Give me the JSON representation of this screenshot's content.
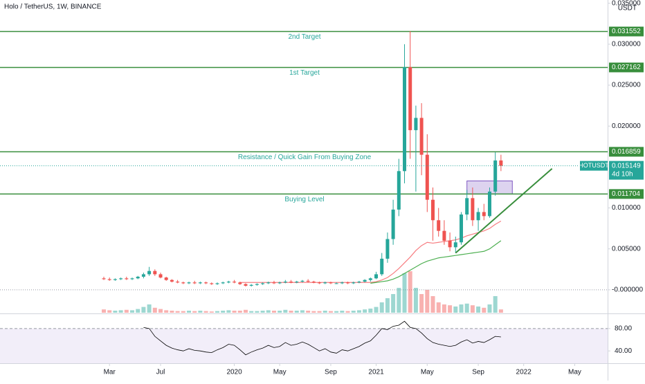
{
  "chart_data": [
    {
      "type": "candlestick",
      "title": "Holo / TetherUS, 1W, BINANCE",
      "currency": "USDT",
      "up_color": "#26a69a",
      "down_color": "#ef5350",
      "open": [
        0.0014,
        0.0013,
        0.0012,
        0.0013,
        0.0014,
        0.0013,
        0.0014,
        0.0016,
        0.0019,
        0.0023,
        0.0019,
        0.0015,
        0.0012,
        0.001,
        0.0009,
        0.0008,
        0.0009,
        0.0008,
        0.0009,
        0.0008,
        0.0007,
        0.0008,
        0.0009,
        0.001,
        0.0009,
        0.0007,
        0.0005,
        0.0006,
        0.0007,
        0.0008,
        0.0009,
        0.0008,
        0.0009,
        0.001,
        0.0009,
        0.001,
        0.0011,
        0.001,
        0.0009,
        0.0008,
        0.0009,
        0.0008,
        0.0008,
        0.0009,
        0.0008,
        0.0009,
        0.001,
        0.0012,
        0.0014,
        0.0019,
        0.0038,
        0.0062,
        0.0098,
        0.0145,
        0.0272,
        0.0195,
        0.021,
        0.0165,
        0.011,
        0.0085,
        0.0072,
        0.006,
        0.0052,
        0.0058,
        0.0092,
        0.0112,
        0.0085,
        0.0095,
        0.009,
        0.012,
        0.0158
      ],
      "high": [
        0.0016,
        0.0015,
        0.0014,
        0.0015,
        0.0016,
        0.0015,
        0.0017,
        0.0021,
        0.0028,
        0.0025,
        0.0021,
        0.0016,
        0.0013,
        0.0012,
        0.001,
        0.001,
        0.0011,
        0.001,
        0.001,
        0.0009,
        0.0009,
        0.001,
        0.0011,
        0.0012,
        0.001,
        0.0008,
        0.0007,
        0.0008,
        0.0009,
        0.001,
        0.0011,
        0.001,
        0.0012,
        0.0012,
        0.0011,
        0.0012,
        0.0013,
        0.0011,
        0.001,
        0.001,
        0.001,
        0.0009,
        0.001,
        0.001,
        0.001,
        0.0011,
        0.0013,
        0.0015,
        0.0022,
        0.0045,
        0.007,
        0.011,
        0.016,
        0.03,
        0.0316,
        0.0225,
        0.0228,
        0.019,
        0.0125,
        0.01,
        0.0085,
        0.007,
        0.0065,
        0.0095,
        0.0122,
        0.0125,
        0.01,
        0.0105,
        0.0125,
        0.0168,
        0.0165
      ],
      "low": [
        0.0012,
        0.0011,
        0.0011,
        0.0012,
        0.0012,
        0.0012,
        0.0013,
        0.0014,
        0.0017,
        0.0017,
        0.0014,
        0.0011,
        0.0009,
        0.0008,
        0.0007,
        0.0007,
        0.0007,
        0.0007,
        0.0007,
        0.0006,
        0.0006,
        0.0007,
        0.0008,
        0.0008,
        0.0006,
        0.0004,
        0.0004,
        0.0005,
        0.0006,
        0.0007,
        0.0007,
        0.0007,
        0.0008,
        0.0008,
        0.0008,
        0.0009,
        0.0009,
        0.0008,
        0.0007,
        0.0007,
        0.0007,
        0.0007,
        0.0007,
        0.0007,
        0.0007,
        0.0008,
        0.0009,
        0.001,
        0.0013,
        0.0017,
        0.0033,
        0.0055,
        0.009,
        0.013,
        0.016,
        0.012,
        0.014,
        0.0095,
        0.006,
        0.0065,
        0.0055,
        0.0047,
        0.0045,
        0.0055,
        0.0085,
        0.0078,
        0.0072,
        0.0085,
        0.0088,
        0.0115,
        0.0145
      ],
      "close": [
        0.0013,
        0.0012,
        0.0013,
        0.0014,
        0.0013,
        0.0014,
        0.0016,
        0.0019,
        0.0023,
        0.0019,
        0.0015,
        0.0012,
        0.001,
        0.0009,
        0.0008,
        0.0009,
        0.0008,
        0.0009,
        0.0008,
        0.0007,
        0.0008,
        0.0009,
        0.001,
        0.0009,
        0.0007,
        0.0005,
        0.0006,
        0.0007,
        0.0008,
        0.0009,
        0.0008,
        0.0009,
        0.001,
        0.0009,
        0.001,
        0.0011,
        0.001,
        0.0009,
        0.0008,
        0.0009,
        0.0008,
        0.0008,
        0.0009,
        0.0008,
        0.0009,
        0.001,
        0.0012,
        0.0014,
        0.0019,
        0.0038,
        0.0062,
        0.0098,
        0.0145,
        0.0272,
        0.0195,
        0.021,
        0.0165,
        0.011,
        0.0085,
        0.0072,
        0.006,
        0.0052,
        0.0058,
        0.0092,
        0.0112,
        0.0085,
        0.0095,
        0.009,
        0.012,
        0.0158,
        0.015149
      ],
      "volume": {
        "values": [
          8,
          6,
          5,
          6,
          7,
          6,
          9,
          14,
          20,
          12,
          9,
          6,
          5,
          4,
          4,
          5,
          4,
          5,
          4,
          3,
          4,
          5,
          6,
          5,
          5,
          7,
          4,
          4,
          5,
          6,
          5,
          5,
          7,
          5,
          5,
          6,
          5,
          4,
          4,
          5,
          4,
          4,
          5,
          4,
          5,
          6,
          8,
          10,
          14,
          25,
          35,
          45,
          60,
          95,
          100,
          60,
          45,
          55,
          40,
          25,
          20,
          18,
          15,
          20,
          22,
          18,
          15,
          12,
          20,
          40,
          8
        ],
        "lim": [
          0,
          100
        ]
      },
      "moving_averages": [
        {
          "color": "#f77c80",
          "values": [
            null,
            null,
            null,
            null,
            null,
            null,
            null,
            null,
            null,
            null,
            null,
            null,
            null,
            null,
            null,
            null,
            null,
            null,
            null,
            null,
            null,
            null,
            null,
            null,
            0.0009,
            0.0009,
            0.0009,
            0.0009,
            0.0009,
            0.0009,
            0.0009,
            0.0009,
            0.0009,
            0.0009,
            0.0009,
            0.0009,
            0.0009,
            0.0009,
            0.0009,
            0.0009,
            0.0009,
            0.0009,
            0.0009,
            0.0009,
            0.0009,
            0.0009,
            0.0009,
            0.0009,
            0.001,
            0.0012,
            0.0015,
            0.002,
            0.0026,
            0.0033,
            0.004,
            0.0048,
            0.0054,
            0.0058,
            0.0057,
            0.0058,
            0.0059,
            0.006,
            0.0061,
            0.0063,
            0.0066,
            0.0068,
            0.007,
            0.0072,
            0.0075,
            0.008,
            0.0084
          ]
        },
        {
          "color": "#4caf50",
          "values": [
            null,
            null,
            null,
            null,
            null,
            null,
            null,
            null,
            null,
            null,
            null,
            null,
            null,
            null,
            null,
            null,
            null,
            null,
            null,
            null,
            null,
            null,
            null,
            null,
            null,
            null,
            null,
            null,
            null,
            null,
            null,
            null,
            null,
            null,
            null,
            null,
            null,
            null,
            null,
            null,
            null,
            null,
            null,
            null,
            null,
            null,
            null,
            0.0008,
            0.0009,
            0.001,
            0.0011,
            0.0013,
            0.0016,
            0.002,
            0.0024,
            0.0028,
            0.0032,
            0.0035,
            0.0037,
            0.0039,
            0.004,
            0.0041,
            0.0042,
            0.0043,
            0.0044,
            0.0045,
            0.0046,
            0.0047,
            0.005,
            0.0055,
            0.006
          ]
        }
      ],
      "xlim": [
        -18.3,
        88.8
      ],
      "xticks": [
        {
          "value": 1,
          "label": "Mar"
        },
        {
          "value": 10,
          "label": "Jul"
        },
        {
          "value": 23,
          "label": "2020"
        },
        {
          "value": 31,
          "label": "May"
        },
        {
          "value": 40,
          "label": "Sep"
        },
        {
          "value": 48,
          "label": "2021"
        },
        {
          "value": 57,
          "label": "May"
        },
        {
          "value": 66,
          "label": "Sep"
        },
        {
          "value": 74,
          "label": "2022"
        },
        {
          "value": 83,
          "label": "May"
        }
      ],
      "ylim": [
        -0.0028,
        0.0354
      ],
      "yticks": [
        {
          "value": 0.035,
          "label": "0.035000"
        },
        {
          "value": 0.03,
          "label": "0.030000"
        },
        {
          "value": 0.025,
          "label": "0.025000"
        },
        {
          "value": 0.02,
          "label": "0.020000"
        },
        {
          "value": 0.01,
          "label": "0.010000"
        },
        {
          "value": 0.005,
          "label": "0.005000"
        },
        {
          "value": 0,
          "label": "-0.000000"
        }
      ],
      "levels": [
        {
          "label": "2nd Target",
          "value": 0.031552
        },
        {
          "label": "1st Target",
          "value": 0.027162
        },
        {
          "label": "Resistance  / Quick Gain From Buying Zone",
          "value": 0.016859
        },
        {
          "label": "Buying Level",
          "value": 0.011704
        }
      ],
      "level_color": "#388e3c",
      "last_price": {
        "symbol": "HOTUSDT",
        "value": 0.015149,
        "countdown": "4d 10h"
      },
      "trendline": {
        "x": [
          62,
          79
        ],
        "y": [
          0.0045,
          0.0148
        ]
      },
      "zone": {
        "x": [
          64,
          72
        ],
        "y": [
          0.0117,
          0.0133
        ]
      }
    },
    {
      "type": "line",
      "color": "#7e57c2",
      "values": [
        null,
        null,
        null,
        null,
        null,
        null,
        null,
        82,
        80,
        66,
        58,
        50,
        45,
        42,
        40,
        44,
        41,
        40,
        38,
        37,
        42,
        46,
        52,
        50,
        42,
        33,
        38,
        42,
        45,
        50,
        46,
        48,
        55,
        50,
        52,
        56,
        52,
        46,
        40,
        44,
        38,
        36,
        42,
        40,
        44,
        48,
        54,
        58,
        68,
        80,
        78,
        84,
        86,
        93,
        82,
        80,
        72,
        62,
        55,
        52,
        50,
        48,
        50,
        56,
        60,
        54,
        57,
        55,
        60,
        66,
        65
      ],
      "ylim": [
        18,
        104.5
      ],
      "yticks": [
        {
          "value": 80,
          "label": "80.00"
        },
        {
          "value": 40,
          "label": "40.00"
        }
      ]
    }
  ]
}
